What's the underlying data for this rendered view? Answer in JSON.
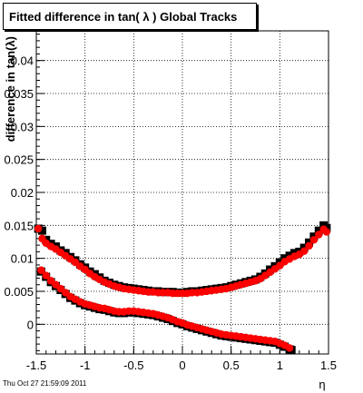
{
  "title": "Fitted difference in tan( λ )  Global Tracks",
  "footer_timestamp": "Thu Oct 27 21:59:09 2011",
  "colors": {
    "series_black": "#000000",
    "series_red": "#ff0000",
    "grid": "#000000",
    "background": "#ffffff"
  },
  "chart_data": {
    "type": "scatter",
    "title": "Fitted difference in tan( λ )  Global Tracks",
    "xlabel": "η",
    "ylabel": "difference in tan(λ)",
    "xlim": [
      -1.5,
      1.5
    ],
    "ylim": [
      -0.0045,
      0.0445
    ],
    "grid": true,
    "x_ticks": [
      -1.5,
      -1,
      -0.5,
      0,
      0.5,
      1,
      1.5
    ],
    "x_tick_labels": [
      "-1.5",
      "-1",
      "-0.5",
      "0",
      "0.5",
      "1",
      "1.5"
    ],
    "y_ticks": [
      0,
      0.005,
      0.01,
      0.015,
      0.02,
      0.025,
      0.03,
      0.035,
      0.04
    ],
    "y_tick_labels": [
      "0",
      "0.005",
      "0.01",
      "0.015",
      "0.02",
      "0.025",
      "0.03",
      "0.035",
      "0.04"
    ],
    "series": [
      {
        "color": "#000000",
        "marker": "square",
        "x": [
          -1.48,
          -1.44,
          -1.4,
          -1.35,
          -1.3,
          -1.25,
          -1.2,
          -1.15,
          -1.1,
          -1.05,
          -1.0,
          -0.95,
          -0.9,
          -0.85,
          -0.8,
          -0.75,
          -0.7,
          -0.65,
          -0.6,
          -0.55,
          -0.5,
          -0.45,
          -0.4,
          -0.35,
          -0.3,
          -0.25,
          -0.2,
          -0.15,
          -0.1,
          -0.05,
          0.0,
          0.05,
          0.1,
          0.15,
          0.2,
          0.25,
          0.3,
          0.35,
          0.4,
          0.45,
          0.5,
          0.55,
          0.6,
          0.65,
          0.7,
          0.75,
          0.8,
          0.85,
          0.9,
          0.95,
          1.0,
          1.05,
          1.1,
          1.15,
          1.2,
          1.25,
          1.3,
          1.35,
          1.4,
          1.45,
          1.48
        ],
        "y": [
          0.0145,
          0.0142,
          0.0128,
          0.0122,
          0.0118,
          0.0112,
          0.0108,
          0.0102,
          0.0097,
          0.0091,
          0.0086,
          0.008,
          0.0076,
          0.0071,
          0.0066,
          0.0063,
          0.006,
          0.0058,
          0.0056,
          0.0055,
          0.0054,
          0.0053,
          0.0052,
          0.0051,
          0.005,
          0.005,
          0.0049,
          0.0049,
          0.0049,
          0.0048,
          0.0048,
          0.0049,
          0.005,
          0.005,
          0.0051,
          0.0052,
          0.0053,
          0.0054,
          0.0055,
          0.0056,
          0.0058,
          0.006,
          0.0062,
          0.0064,
          0.0066,
          0.0068,
          0.0072,
          0.0077,
          0.0083,
          0.0088,
          0.0094,
          0.01,
          0.0104,
          0.0108,
          0.011,
          0.0116,
          0.0124,
          0.0133,
          0.0142,
          0.015,
          0.0146
        ]
      },
      {
        "color": "#ff0000",
        "marker": "circle",
        "x": [
          -1.48,
          -1.44,
          -1.4,
          -1.35,
          -1.3,
          -1.25,
          -1.2,
          -1.15,
          -1.1,
          -1.05,
          -1.0,
          -0.95,
          -0.9,
          -0.85,
          -0.8,
          -0.75,
          -0.7,
          -0.65,
          -0.6,
          -0.55,
          -0.5,
          -0.45,
          -0.4,
          -0.35,
          -0.3,
          -0.25,
          -0.2,
          -0.15,
          -0.1,
          -0.05,
          0.0,
          0.05,
          0.1,
          0.15,
          0.2,
          0.25,
          0.3,
          0.35,
          0.4,
          0.45,
          0.5,
          0.55,
          0.6,
          0.65,
          0.7,
          0.75,
          0.8,
          0.85,
          0.9,
          0.95,
          1.0,
          1.05,
          1.1,
          1.15,
          1.2,
          1.25,
          1.3,
          1.35,
          1.4,
          1.45,
          1.48
        ],
        "y": [
          0.0145,
          0.013,
          0.0123,
          0.0118,
          0.0114,
          0.0109,
          0.0104,
          0.0099,
          0.0094,
          0.0088,
          0.0083,
          0.0077,
          0.0072,
          0.0068,
          0.0064,
          0.0061,
          0.0058,
          0.0056,
          0.0054,
          0.0053,
          0.0052,
          0.0051,
          0.005,
          0.0049,
          0.0049,
          0.0048,
          0.0048,
          0.0048,
          0.0047,
          0.0047,
          0.0047,
          0.0047,
          0.0048,
          0.0048,
          0.0049,
          0.005,
          0.0051,
          0.0052,
          0.0053,
          0.0054,
          0.0056,
          0.0058,
          0.006,
          0.0062,
          0.0064,
          0.0066,
          0.0069,
          0.0074,
          0.0079,
          0.0084,
          0.0089,
          0.0095,
          0.0099,
          0.0103,
          0.0106,
          0.0111,
          0.0119,
          0.0128,
          0.0136,
          0.0144,
          0.014
        ]
      },
      {
        "color": "#000000",
        "marker": "square",
        "x": [
          -1.45,
          -1.4,
          -1.35,
          -1.3,
          -1.25,
          -1.2,
          -1.15,
          -1.1,
          -1.05,
          -1.0,
          -0.95,
          -0.9,
          -0.85,
          -0.8,
          -0.75,
          -0.7,
          -0.65,
          -0.6,
          -0.55,
          -0.5,
          -0.45,
          -0.4,
          -0.35,
          -0.3,
          -0.25,
          -0.2,
          -0.15,
          -0.1,
          -0.05,
          0.0,
          0.05,
          0.1,
          0.15,
          0.2,
          0.25,
          0.3,
          0.35,
          0.4,
          0.45,
          0.5,
          0.55,
          0.6,
          0.65,
          0.7,
          0.75,
          0.8,
          0.85,
          0.9,
          0.95,
          1.0,
          1.05,
          1.1,
          1.12
        ],
        "y": [
          0.008,
          0.0072,
          0.0064,
          0.0058,
          0.0052,
          0.0046,
          0.004,
          0.0036,
          0.0032,
          0.0029,
          0.0027,
          0.0025,
          0.0023,
          0.0022,
          0.002,
          0.0018,
          0.0017,
          0.0017,
          0.0018,
          0.0018,
          0.0017,
          0.0016,
          0.0015,
          0.0014,
          0.0012,
          0.001,
          0.0008,
          0.0005,
          0.0002,
          0.0,
          -0.0003,
          -0.0005,
          -0.0007,
          -0.0009,
          -0.0011,
          -0.0013,
          -0.0015,
          -0.0017,
          -0.0018,
          -0.0019,
          -0.002,
          -0.0021,
          -0.0022,
          -0.0023,
          -0.0024,
          -0.0025,
          -0.0026,
          -0.0027,
          -0.0028,
          -0.0031,
          -0.0034,
          -0.0038,
          -0.0039
        ]
      },
      {
        "color": "#ff0000",
        "marker": "circle",
        "x": [
          -1.45,
          -1.4,
          -1.35,
          -1.3,
          -1.25,
          -1.2,
          -1.15,
          -1.1,
          -1.05,
          -1.0,
          -0.95,
          -0.9,
          -0.85,
          -0.8,
          -0.75,
          -0.7,
          -0.65,
          -0.6,
          -0.55,
          -0.5,
          -0.45,
          -0.4,
          -0.35,
          -0.3,
          -0.25,
          -0.2,
          -0.15,
          -0.1,
          -0.05,
          0.0,
          0.05,
          0.1,
          0.15,
          0.2,
          0.25,
          0.3,
          0.35,
          0.4,
          0.45,
          0.5,
          0.55,
          0.6,
          0.65,
          0.7,
          0.75,
          0.8,
          0.85,
          0.9,
          0.95,
          1.0,
          1.05,
          1.1
        ],
        "y": [
          0.0082,
          0.0074,
          0.0066,
          0.006,
          0.0054,
          0.0048,
          0.0042,
          0.0038,
          0.0034,
          0.0031,
          0.0029,
          0.0027,
          0.0025,
          0.0024,
          0.0022,
          0.002,
          0.0019,
          0.0019,
          0.002,
          0.002,
          0.0019,
          0.0018,
          0.0017,
          0.0016,
          0.0014,
          0.0012,
          0.001,
          0.0007,
          0.0004,
          0.0002,
          -0.0001,
          -0.0003,
          -0.0005,
          -0.0007,
          -0.0009,
          -0.0011,
          -0.0013,
          -0.0015,
          -0.0016,
          -0.0017,
          -0.0018,
          -0.0019,
          -0.002,
          -0.0021,
          -0.0022,
          -0.0023,
          -0.0024,
          -0.0025,
          -0.0026,
          -0.0029,
          -0.0032,
          -0.0036
        ]
      }
    ]
  }
}
